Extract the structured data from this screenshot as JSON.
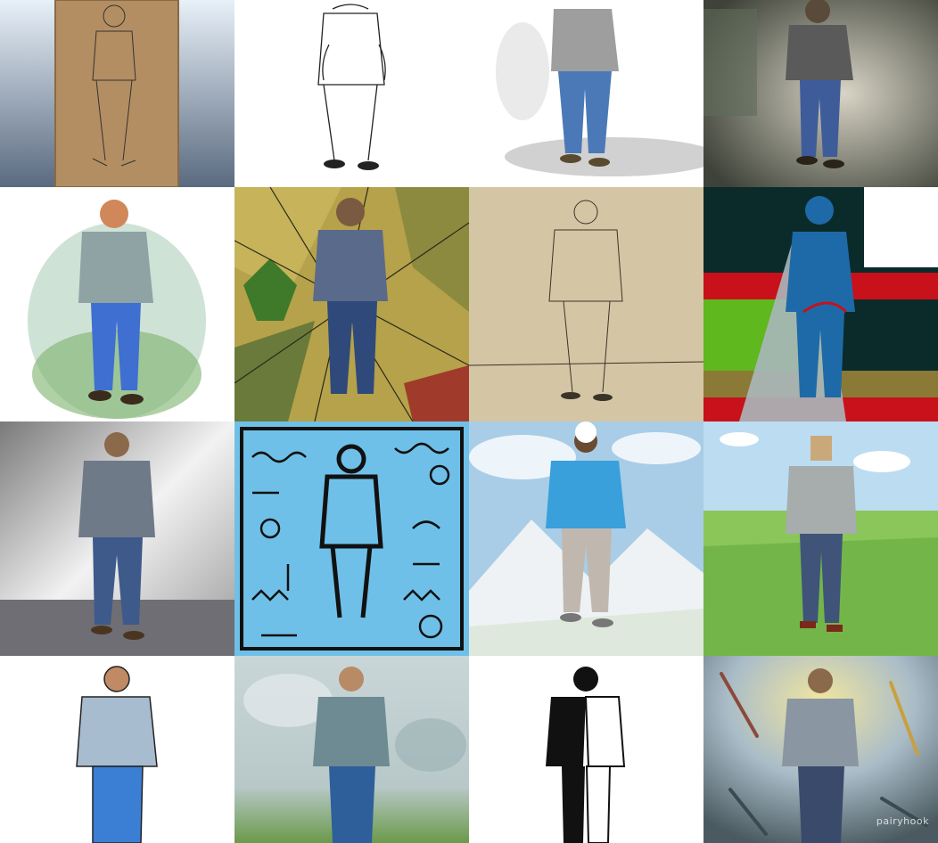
{
  "gallery": {
    "watermark": "pairyhook",
    "tiles": [
      {
        "style": "photo-cardboard-sketch",
        "bg": "#b79468"
      },
      {
        "style": "ink-line-drawing",
        "bg": "#ffffff"
      },
      {
        "style": "watercolor-gray-blue",
        "bg": "#ffffff"
      },
      {
        "style": "dark-painterly",
        "bg": "#6e6a55"
      },
      {
        "style": "watercolor-vignette",
        "bg": "#ffffff"
      },
      {
        "style": "stained-glass-cubist",
        "bg": "#9b8b3a"
      },
      {
        "style": "sepia-pencil-sketch",
        "bg": "#d8c8a8"
      },
      {
        "style": "flat-cutout-collage",
        "bg": "#0b2b2b"
      },
      {
        "style": "gray-streak-painting",
        "bg": "#cfcfcf"
      },
      {
        "style": "doodle-pattern",
        "bg": "#6fc0e8"
      },
      {
        "style": "mountain-watercolor",
        "bg": "#bfd8ea"
      },
      {
        "style": "low-poly-3d",
        "bg": "#74b54a"
      },
      {
        "style": "comic-cel-shaded",
        "bg": "#ffffff"
      },
      {
        "style": "misty-oil-painting",
        "bg": "#9fb2b8"
      },
      {
        "style": "black-white-stencil",
        "bg": "#ffffff"
      },
      {
        "style": "expressive-brush-strokes",
        "bg": "#8a98a0"
      }
    ]
  }
}
